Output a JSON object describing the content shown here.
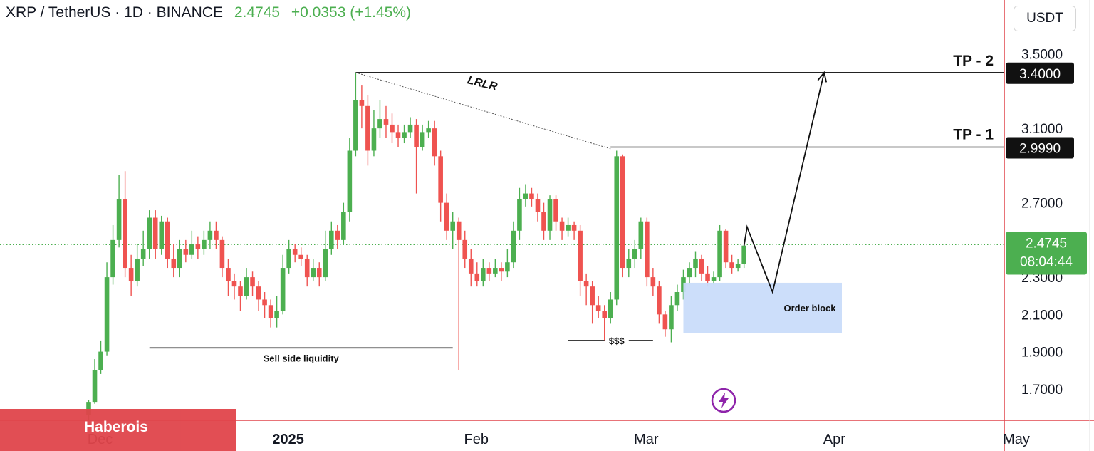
{
  "header": {
    "symbol": "XRP / TetherUS · 1D · BINANCE",
    "price": "2.4745",
    "change": "+0.0353 (+1.45%)"
  },
  "axis": {
    "unit_label": "USDT"
  },
  "watermark": {
    "text": "Haberois"
  },
  "colors": {
    "up": "#4caf50",
    "down": "#ef5350",
    "order_block": "#c9dcfa",
    "watermark": "#e0454b",
    "border": "#e0454b"
  },
  "chart_data": {
    "type": "candlestick",
    "ylim": [
      1.55,
      3.56
    ],
    "y_ticks": [
      {
        "v": 3.5,
        "label": "3.5000"
      },
      {
        "v": 3.1,
        "label": "3.1000"
      },
      {
        "v": 2.7,
        "label": "2.7000"
      },
      {
        "v": 2.3,
        "label": "2.3000"
      },
      {
        "v": 2.1,
        "label": "2.1000"
      },
      {
        "v": 1.9,
        "label": "1.9000"
      },
      {
        "v": 1.7,
        "label": "1.7000"
      }
    ],
    "x_ticks": [
      {
        "index": 0,
        "label": "Dec",
        "bold": false
      },
      {
        "index": 31,
        "label": "2025",
        "bold": true
      },
      {
        "index": 62,
        "label": "Feb",
        "bold": false
      },
      {
        "index": 90,
        "label": "Mar",
        "bold": false
      },
      {
        "index": 121,
        "label": "Apr",
        "bold": false
      },
      {
        "index": 151,
        "label": "May",
        "bold": false
      }
    ],
    "candles": [
      [
        1.56,
        1.63,
        1.53,
        1.64
      ],
      [
        1.63,
        1.8,
        1.62,
        1.86
      ],
      [
        1.8,
        1.9,
        1.78,
        1.96
      ],
      [
        1.9,
        2.3,
        1.88,
        2.38
      ],
      [
        2.3,
        2.5,
        2.26,
        2.58
      ],
      [
        2.5,
        2.72,
        2.46,
        2.85
      ],
      [
        2.72,
        2.35,
        2.3,
        2.87
      ],
      [
        2.35,
        2.28,
        2.2,
        2.42
      ],
      [
        2.28,
        2.4,
        2.25,
        2.48
      ],
      [
        2.4,
        2.45,
        2.36,
        2.55
      ],
      [
        2.45,
        2.62,
        2.4,
        2.66
      ],
      [
        2.62,
        2.45,
        2.4,
        2.66
      ],
      [
        2.45,
        2.6,
        2.42,
        2.63
      ],
      [
        2.6,
        2.4,
        2.35,
        2.62
      ],
      [
        2.4,
        2.35,
        2.3,
        2.48
      ],
      [
        2.35,
        2.45,
        2.3,
        2.5
      ],
      [
        2.45,
        2.42,
        2.38,
        2.5
      ],
      [
        2.42,
        2.48,
        2.4,
        2.55
      ],
      [
        2.48,
        2.45,
        2.4,
        2.52
      ],
      [
        2.45,
        2.5,
        2.42,
        2.55
      ],
      [
        2.5,
        2.55,
        2.45,
        2.6
      ],
      [
        2.55,
        2.5,
        2.45,
        2.6
      ],
      [
        2.5,
        2.35,
        2.3,
        2.52
      ],
      [
        2.35,
        2.28,
        2.2,
        2.4
      ],
      [
        2.28,
        2.25,
        2.18,
        2.32
      ],
      [
        2.25,
        2.2,
        2.12,
        2.28
      ],
      [
        2.2,
        2.3,
        2.18,
        2.35
      ],
      [
        2.3,
        2.25,
        2.2,
        2.33
      ],
      [
        2.25,
        2.18,
        2.12,
        2.28
      ],
      [
        2.18,
        2.15,
        2.08,
        2.22
      ],
      [
        2.15,
        2.08,
        2.03,
        2.18
      ],
      [
        2.08,
        2.12,
        2.03,
        2.2
      ],
      [
        2.12,
        2.35,
        2.1,
        2.42
      ],
      [
        2.35,
        2.45,
        2.32,
        2.5
      ],
      [
        2.45,
        2.42,
        2.38,
        2.48
      ],
      [
        2.42,
        2.4,
        2.36,
        2.46
      ],
      [
        2.4,
        2.3,
        2.25,
        2.42
      ],
      [
        2.3,
        2.35,
        2.28,
        2.4
      ],
      [
        2.35,
        2.3,
        2.25,
        2.38
      ],
      [
        2.3,
        2.45,
        2.28,
        2.55
      ],
      [
        2.45,
        2.55,
        2.42,
        2.6
      ],
      [
        2.55,
        2.5,
        2.45,
        2.58
      ],
      [
        2.5,
        2.65,
        2.48,
        2.7
      ],
      [
        2.65,
        2.98,
        2.6,
        3.05
      ],
      [
        2.98,
        3.25,
        2.95,
        3.4
      ],
      [
        3.25,
        3.22,
        3.1,
        3.33
      ],
      [
        3.22,
        2.98,
        2.9,
        3.28
      ],
      [
        2.98,
        3.1,
        2.95,
        3.2
      ],
      [
        3.1,
        3.15,
        3.05,
        3.25
      ],
      [
        3.15,
        3.12,
        3.05,
        3.22
      ],
      [
        3.12,
        3.08,
        3.02,
        3.18
      ],
      [
        3.08,
        3.05,
        3.0,
        3.12
      ],
      [
        3.05,
        3.08,
        3.02,
        3.12
      ],
      [
        3.08,
        3.12,
        3.05,
        3.16
      ],
      [
        3.12,
        3.0,
        2.75,
        3.15
      ],
      [
        3.0,
        3.08,
        2.98,
        3.12
      ],
      [
        3.08,
        3.1,
        3.05,
        3.14
      ],
      [
        3.1,
        2.95,
        2.9,
        3.14
      ],
      [
        2.95,
        2.7,
        2.6,
        2.98
      ],
      [
        2.7,
        2.55,
        2.5,
        2.75
      ],
      [
        2.55,
        2.6,
        2.45,
        2.65
      ],
      [
        2.6,
        2.5,
        1.8,
        2.62
      ],
      [
        2.5,
        2.4,
        2.35,
        2.55
      ],
      [
        2.4,
        2.32,
        2.25,
        2.45
      ],
      [
        2.32,
        2.28,
        2.25,
        2.38
      ],
      [
        2.28,
        2.35,
        2.25,
        2.4
      ],
      [
        2.35,
        2.32,
        2.28,
        2.38
      ],
      [
        2.32,
        2.35,
        2.3,
        2.4
      ],
      [
        2.35,
        2.33,
        2.28,
        2.38
      ],
      [
        2.33,
        2.38,
        2.3,
        2.45
      ],
      [
        2.38,
        2.55,
        2.35,
        2.6
      ],
      [
        2.55,
        2.72,
        2.5,
        2.78
      ],
      [
        2.72,
        2.75,
        2.68,
        2.8
      ],
      [
        2.75,
        2.72,
        2.68,
        2.78
      ],
      [
        2.72,
        2.65,
        2.6,
        2.75
      ],
      [
        2.65,
        2.55,
        2.5,
        2.7
      ],
      [
        2.55,
        2.72,
        2.5,
        2.74
      ],
      [
        2.72,
        2.6,
        2.55,
        2.74
      ],
      [
        2.6,
        2.55,
        2.5,
        2.62
      ],
      [
        2.55,
        2.58,
        2.52,
        2.62
      ],
      [
        2.58,
        2.55,
        2.5,
        2.6
      ],
      [
        2.55,
        2.28,
        2.2,
        2.58
      ],
      [
        2.28,
        2.25,
        2.15,
        2.32
      ],
      [
        2.25,
        2.15,
        2.05,
        2.28
      ],
      [
        2.15,
        2.12,
        2.08,
        2.2
      ],
      [
        2.12,
        2.08,
        1.96,
        2.15
      ],
      [
        2.08,
        2.18,
        2.05,
        2.22
      ],
      [
        2.18,
        2.95,
        2.15,
        2.98
      ],
      [
        2.95,
        2.35,
        2.3,
        2.96
      ],
      [
        2.35,
        2.4,
        2.3,
        2.45
      ],
      [
        2.4,
        2.45,
        2.35,
        2.5
      ],
      [
        2.45,
        2.6,
        2.4,
        2.62
      ],
      [
        2.6,
        2.3,
        2.25,
        2.62
      ],
      [
        2.3,
        2.25,
        2.2,
        2.35
      ],
      [
        2.25,
        2.1,
        2.05,
        2.28
      ],
      [
        2.1,
        2.02,
        1.98,
        2.12
      ],
      [
        2.02,
        2.15,
        1.95,
        2.2
      ],
      [
        2.15,
        2.22,
        2.12,
        2.26
      ],
      [
        2.22,
        2.3,
        2.18,
        2.34
      ],
      [
        2.3,
        2.35,
        2.26,
        2.38
      ],
      [
        2.35,
        2.4,
        2.3,
        2.44
      ],
      [
        2.4,
        2.32,
        2.28,
        2.42
      ],
      [
        2.32,
        2.28,
        2.25,
        2.36
      ],
      [
        2.28,
        2.3,
        2.26,
        2.33
      ],
      [
        2.3,
        2.55,
        2.28,
        2.58
      ],
      [
        2.55,
        2.38,
        2.35,
        2.56
      ],
      [
        2.38,
        2.35,
        2.32,
        2.42
      ],
      [
        2.35,
        2.37,
        2.33,
        2.4
      ],
      [
        2.37,
        2.47,
        2.35,
        2.5
      ]
    ],
    "annotations": {
      "lrlr_label": "LRLR",
      "tp2_label": "TP - 2",
      "tp2_price": "3.4000",
      "tp1_label": "TP - 1",
      "tp1_price": "2.9990",
      "last_price": "2.4745",
      "countdown": "08:04:44",
      "sell_side_label": "Sell side liquidity",
      "dollar_label": "$$$",
      "order_block_label": "Order block"
    }
  }
}
